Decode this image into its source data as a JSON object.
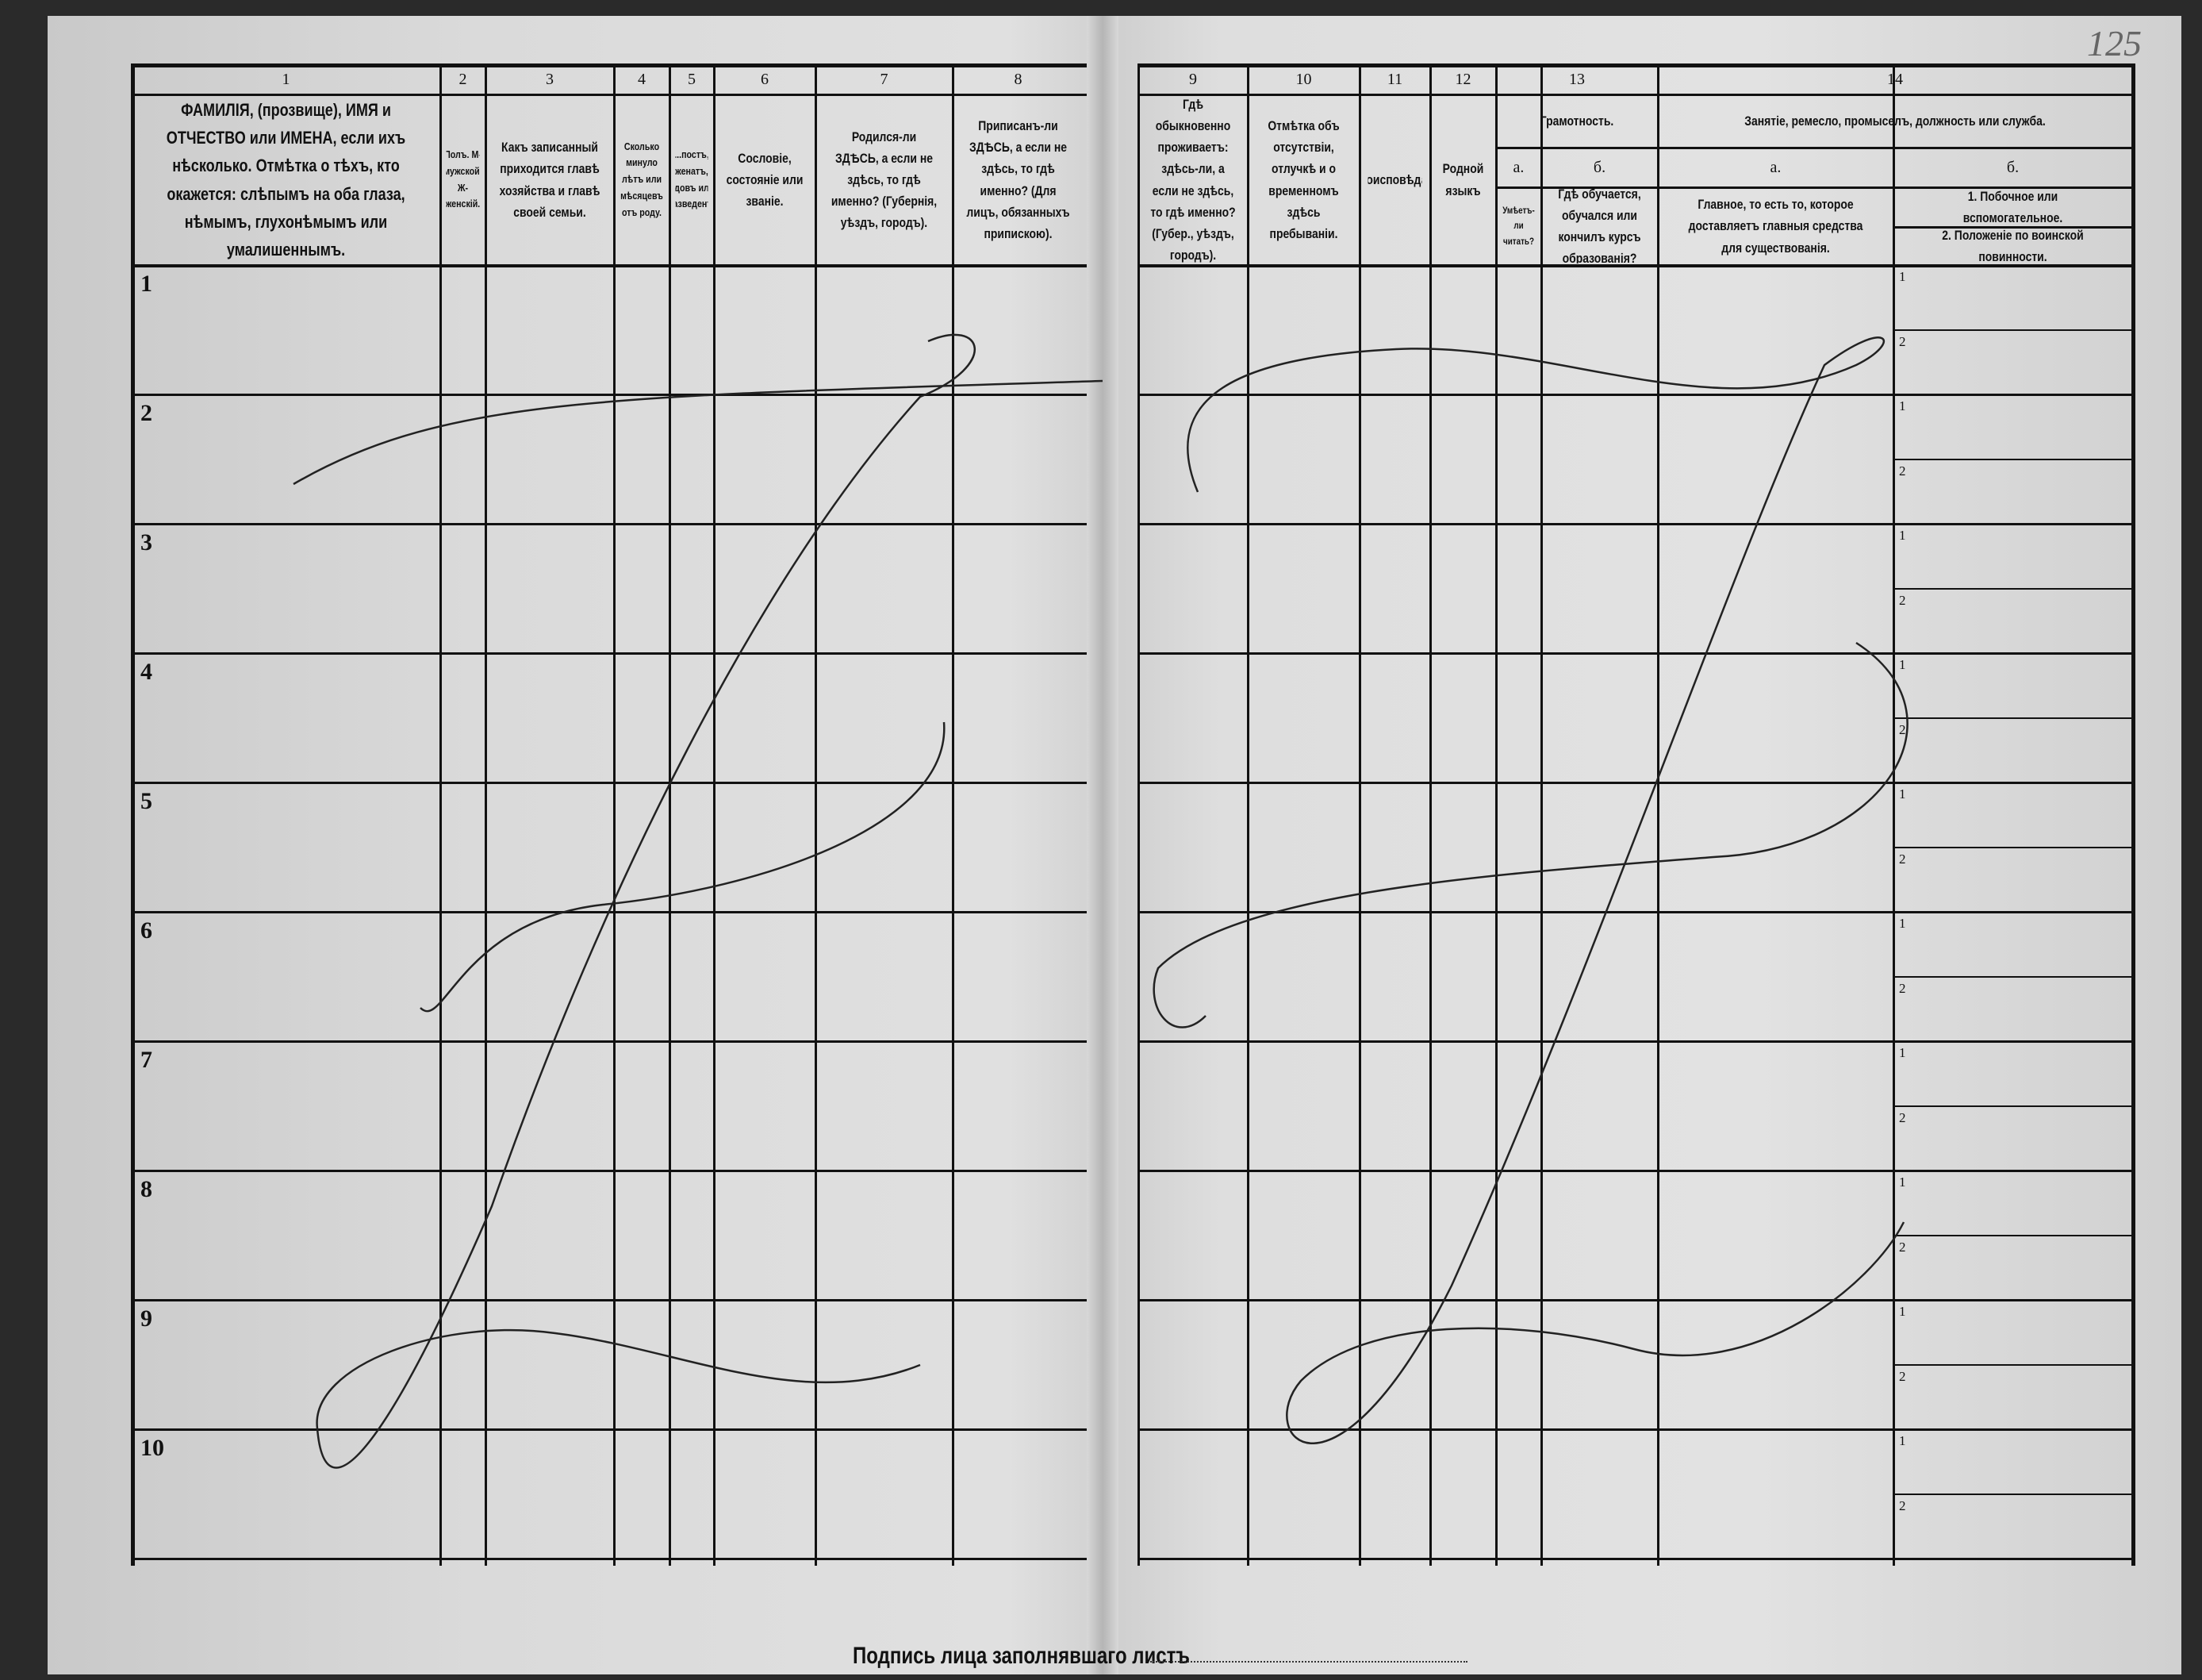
{
  "page_number": "125",
  "columns": [
    {
      "num": "1",
      "label": "ФАМИЛІЯ, (прозвище), ИМЯ и ОТЧЕСТВО или ИМЕНА, если ихъ нѣсколько. Отмѣтка о тѣхъ, кто окажется: слѣпымъ на оба глаза, нѣмымъ, глухонѣмымъ или умалишеннымъ."
    },
    {
      "num": "2",
      "label": "Полъ. М-мужской. Ж-женскій."
    },
    {
      "num": "3",
      "label": "Какъ записанный приходится главѣ хозяйства и главѣ своей семьи."
    },
    {
      "num": "4",
      "label": "Сколько минуло лѣтъ или мѣсяцевъ отъ роду."
    },
    {
      "num": "5",
      "label": "...постъ, женатъ, вдовъ или разведенъ."
    },
    {
      "num": "6",
      "label": "Сословіе, состояніе или званіе."
    },
    {
      "num": "7",
      "label": "Родился-ли ЗДѢСЬ, а если не здѣсь, то гдѣ именно? (Губернія, уѣздъ, городъ)."
    },
    {
      "num": "8",
      "label": "Приписанъ-ли ЗДѢСЬ, а если не здѣсь, то гдѣ именно? (Для лицъ, обязанныхъ припискою)."
    },
    {
      "num": "9",
      "label": "Гдѣ обыкновенно проживаетъ: здѣсь-ли, а если не здѣсь, то гдѣ именно? (Губер., уѣздъ, городъ)."
    },
    {
      "num": "10",
      "label": "Отмѣтка объ отсутствіи, отлучкѣ и о временномъ здѣсь пребываніи."
    },
    {
      "num": "11",
      "label": "Вѣроисповѣданіе."
    },
    {
      "num": "12",
      "label": "Родной языкъ"
    }
  ],
  "col13": {
    "num": "13",
    "group": "Грамотность.",
    "a": {
      "letter": "а.",
      "label": "Умѣетъ-ли читать?"
    },
    "b": {
      "letter": "б.",
      "label": "Гдѣ обучается, обучался или кончилъ курсъ образованія?"
    }
  },
  "col14": {
    "num": "14",
    "group": "Занятіе, ремесло, промыселъ, должность или служба.",
    "a": {
      "letter": "а.",
      "label": "Главное, то есть то, которое доставляетъ главныя средства для существованія."
    },
    "b": {
      "letter": "б.",
      "label1": "1. Побочное или вспомогательное.",
      "label2": "2. Положеніе по воинской повинности."
    }
  },
  "rows": [
    "1",
    "2",
    "3",
    "4",
    "5",
    "6",
    "7",
    "8",
    "9",
    "10"
  ],
  "subrow_labels": [
    "1",
    "2"
  ],
  "footer": {
    "signature_label": "Подпись лица заполнявшаго листъ"
  }
}
